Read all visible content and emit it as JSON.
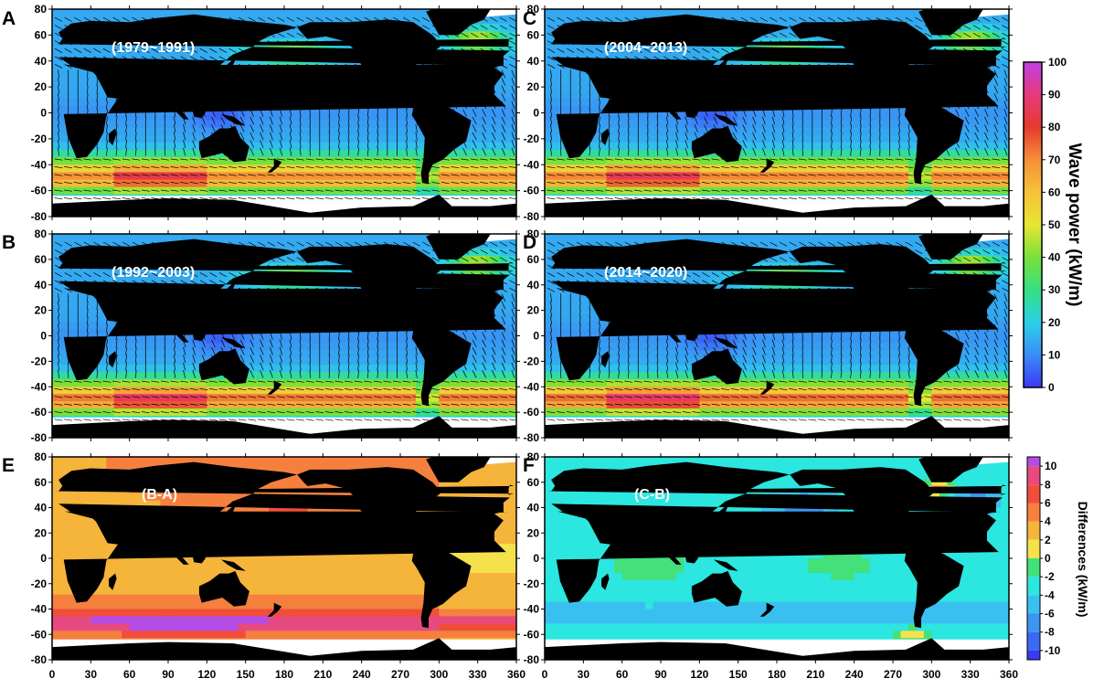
{
  "panels": [
    {
      "letter": "A",
      "label": "(1979~1991)",
      "kind": "power",
      "arrows": true,
      "variant": 0
    },
    {
      "letter": "C",
      "label": "(2004~2013)",
      "kind": "power",
      "arrows": true,
      "variant": 1
    },
    {
      "letter": "B",
      "label": "(1992~2003)",
      "kind": "power",
      "arrows": true,
      "variant": 2
    },
    {
      "letter": "D",
      "label": "(2014~2020)",
      "kind": "power",
      "arrows": true,
      "variant": 3
    },
    {
      "letter": "E",
      "label": "(B-A)",
      "kind": "diff_ba",
      "arrows": false,
      "variant": 0
    },
    {
      "letter": "F",
      "label": "(C-B)",
      "kind": "diff_cb",
      "arrows": false,
      "variant": 0
    }
  ],
  "axes": {
    "lat_ticks": [
      80,
      60,
      40,
      20,
      0,
      -20,
      -40,
      -60,
      -80
    ],
    "lat_range": [
      -80,
      80
    ],
    "lon_ticks": [
      0,
      30,
      60,
      90,
      120,
      150,
      180,
      210,
      240,
      270,
      300,
      330,
      360
    ],
    "lon_range": [
      0,
      360
    ]
  },
  "colorbar_power": {
    "title": "Wave power (kW/m)",
    "ticks": [
      0,
      10,
      20,
      30,
      40,
      50,
      60,
      70,
      80,
      90,
      100
    ],
    "range": [
      0,
      100
    ],
    "colormap": [
      "#3a38f5",
      "#3a8ef5",
      "#2cd0e8",
      "#35e080",
      "#7be03a",
      "#e6e632",
      "#f5c23a",
      "#f5903a",
      "#e63a2e",
      "#e63a7a",
      "#c040e6"
    ]
  },
  "colorbar_diff": {
    "title": "Differences (kW/m)",
    "ticks": [
      10,
      8,
      6,
      4,
      2,
      0,
      -2,
      -4,
      -6,
      -8,
      -10
    ],
    "levels": [
      {
        "from": 10,
        "to": 11,
        "color": "#b34de6"
      },
      {
        "from": 8,
        "to": 10,
        "color": "#e64a80"
      },
      {
        "from": 6,
        "to": 8,
        "color": "#f04e3a"
      },
      {
        "from": 4,
        "to": 6,
        "color": "#f5803e"
      },
      {
        "from": 2,
        "to": 4,
        "color": "#f5b43a"
      },
      {
        "from": 0,
        "to": 2,
        "color": "#f5e24a"
      },
      {
        "from": -2,
        "to": 0,
        "color": "#44e07a"
      },
      {
        "from": -4,
        "to": -2,
        "color": "#2ce6e0"
      },
      {
        "from": -6,
        "to": -4,
        "color": "#3ac0f0"
      },
      {
        "from": -8,
        "to": -6,
        "color": "#3a96f0"
      },
      {
        "from": -10,
        "to": -8,
        "color": "#3a6af0"
      },
      {
        "from": -11,
        "to": -10,
        "color": "#3a3af0"
      }
    ]
  },
  "colors": {
    "land": "#000000",
    "sea_ice": "#ffffff",
    "label_text": "#ffffff"
  }
}
